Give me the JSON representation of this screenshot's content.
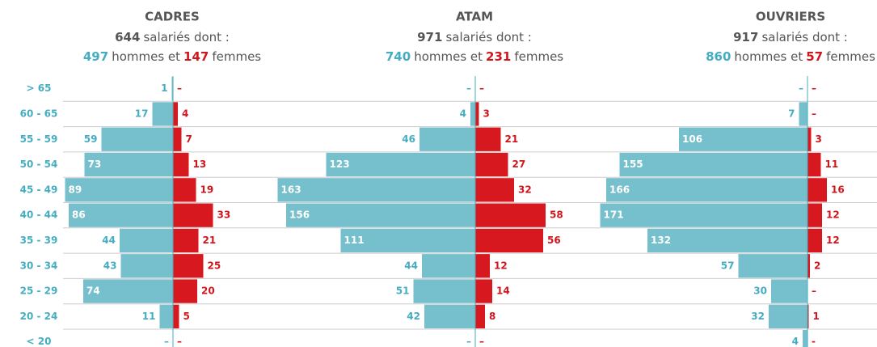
{
  "chart_data": {
    "type": "pyramid",
    "categories": [
      "> 65",
      "60 - 65",
      "55 - 59",
      "50 - 54",
      "45 - 49",
      "40 - 44",
      "35 - 39",
      "30 - 34",
      "25 - 29",
      "20 - 24",
      "< 20"
    ],
    "panels": [
      {
        "title": "CADRES",
        "total": "644",
        "total_text": "salariés dont :",
        "men_count": "497",
        "men_text": "hommes et",
        "women_count": "147",
        "women_text": "femmes",
        "series": [
          {
            "color": "#76bfcc",
            "values": [
              1,
              17,
              59,
              73,
              89,
              86,
              44,
              43,
              74,
              11,
              0
            ],
            "value_labels": [
              null,
              null,
              null,
              null,
              null,
              null,
              null,
              null,
              null,
              null,
              "–"
            ]
          },
          {
            "color": "#d7191f",
            "values": [
              0,
              4,
              7,
              13,
              19,
              33,
              21,
              25,
              20,
              5,
              0
            ],
            "value_labels": [
              "–",
              null,
              null,
              null,
              null,
              null,
              null,
              null,
              null,
              null,
              "–"
            ]
          }
        ]
      },
      {
        "title": "ATAM",
        "total": "971",
        "total_text": "salariés dont :",
        "men_count": "740",
        "men_text": "hommes et",
        "women_count": "231",
        "women_text": "femmes",
        "series": [
          {
            "color": "#76bfcc",
            "values": [
              0,
              4,
              46,
              123,
              163,
              156,
              111,
              44,
              51,
              42,
              0
            ],
            "value_labels": [
              "–",
              null,
              null,
              null,
              null,
              null,
              null,
              null,
              null,
              null,
              "–"
            ]
          },
          {
            "color": "#d7191f",
            "values": [
              0,
              3,
              21,
              27,
              32,
              58,
              56,
              12,
              14,
              8,
              0
            ],
            "value_labels": [
              "–",
              null,
              null,
              null,
              null,
              null,
              null,
              null,
              null,
              null,
              "–"
            ]
          }
        ]
      },
      {
        "title": "OUVRIERS",
        "total": "917",
        "total_text": "salariés dont :",
        "men_count": "860",
        "men_text": "hommes et",
        "women_count": "57",
        "women_text": "femmes",
        "series": [
          {
            "color": "#76bfcc",
            "values": [
              0,
              7,
              106,
              155,
              166,
              171,
              132,
              57,
              30,
              32,
              4
            ],
            "value_labels": [
              "–",
              null,
              null,
              null,
              null,
              null,
              null,
              null,
              null,
              null,
              null
            ]
          },
          {
            "color": "#d7191f",
            "values": [
              0,
              0,
              3,
              11,
              16,
              12,
              12,
              2,
              0,
              1,
              0
            ],
            "value_labels": [
              "–",
              "–",
              null,
              null,
              null,
              null,
              null,
              null,
              "–",
              null,
              "-"
            ]
          }
        ]
      }
    ]
  }
}
